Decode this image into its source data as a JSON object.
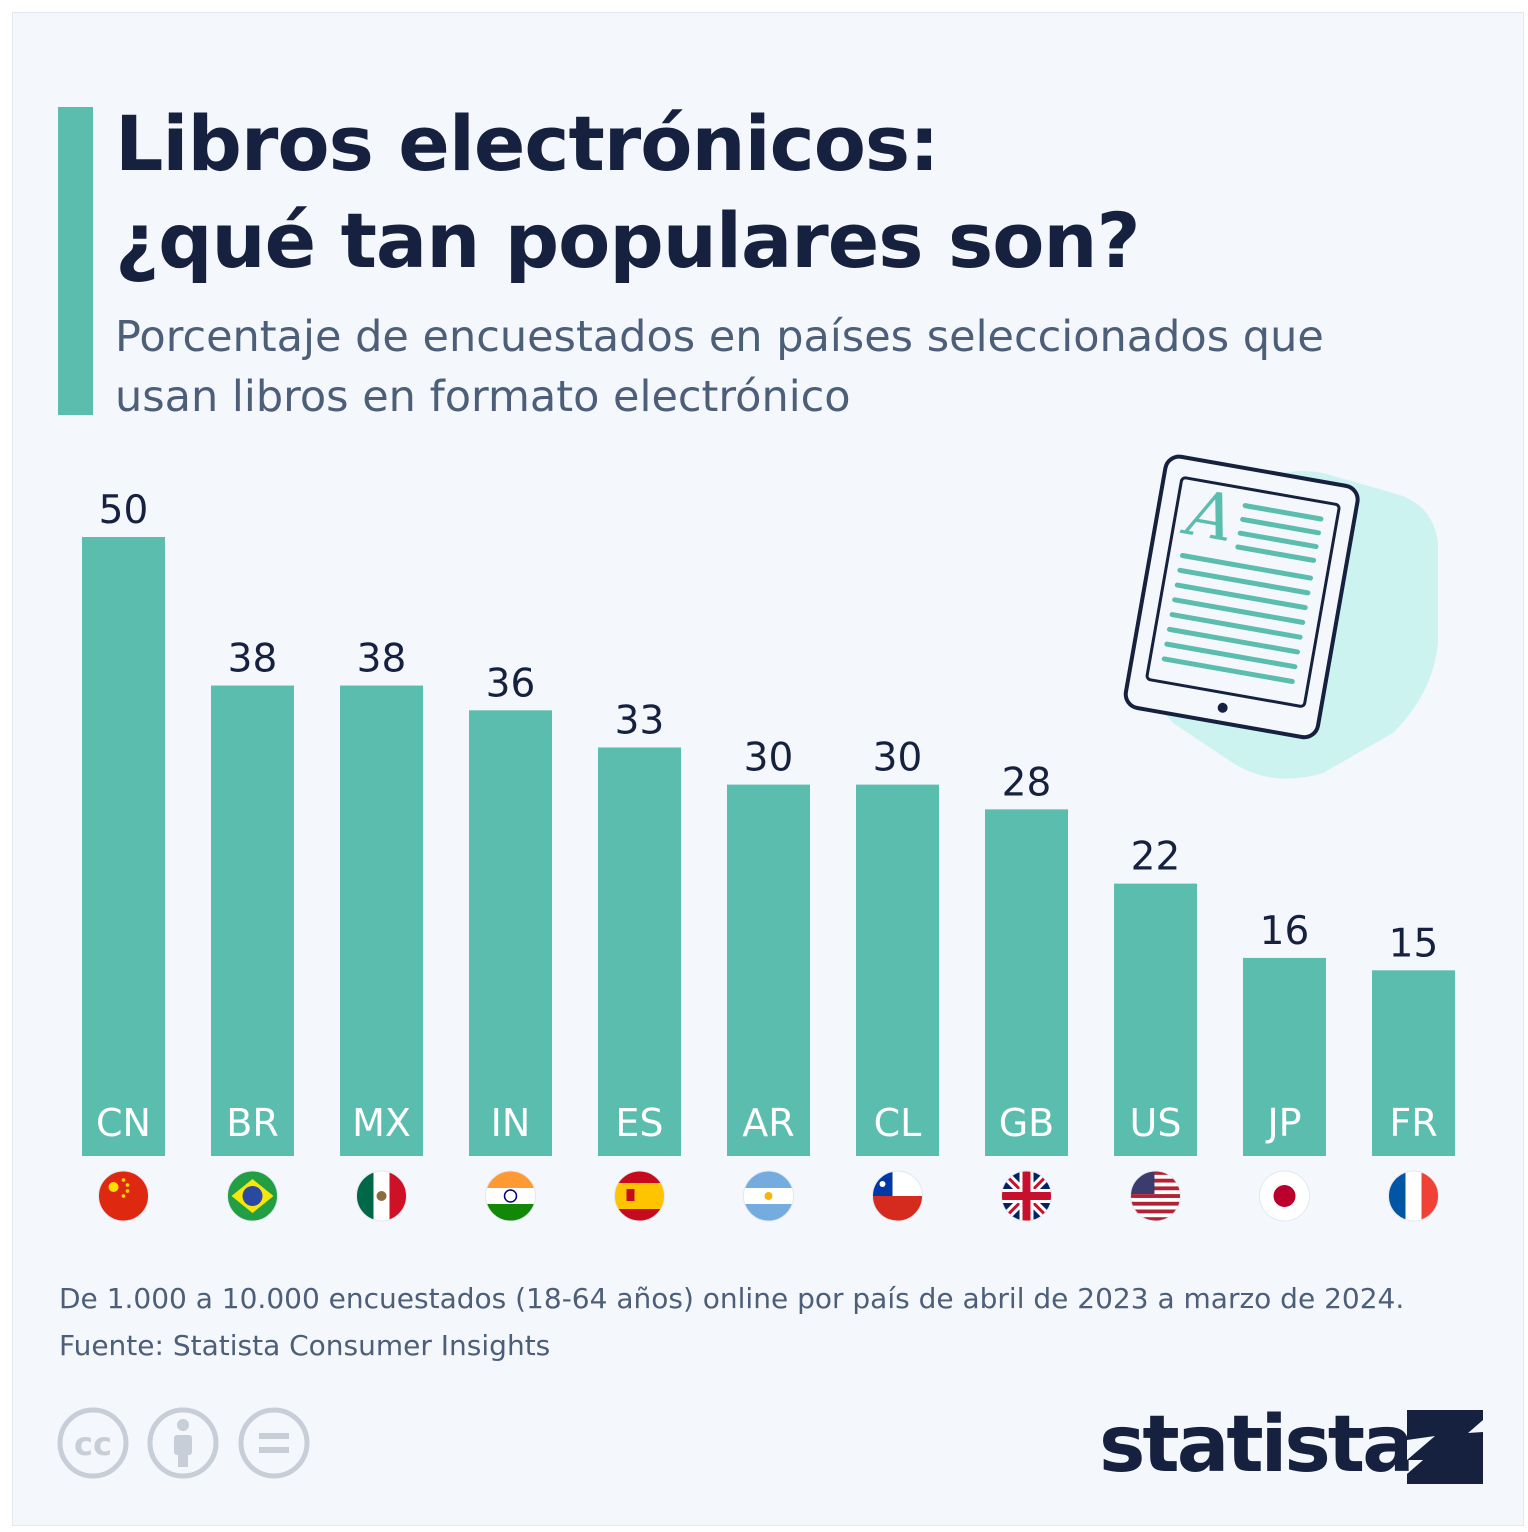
{
  "title_line1": "Libros electrónicos:",
  "title_line2": "¿qué tan populares son?",
  "subtitle_line1": "Porcentaje de encuestados en países seleccionados que",
  "subtitle_line2": "usan libros en formato electrónico",
  "footnote": "De 1.000 a 10.000 encuestados (18-64 años) online por país de abril de 2023 a marzo de 2024.",
  "source": "Fuente: Statista Consumer Insights",
  "logo_text": "statista",
  "license_icons": [
    "cc-icon",
    "attribution-icon",
    "no-derivatives-icon"
  ],
  "illustration_icon": "ebook-reader-icon",
  "illustration_letter": "A",
  "colors": {
    "bar": "#5bbdae",
    "accent": "#5bbdae",
    "title": "#16213f",
    "text": "#4d5e78",
    "background": "#f4f7fb"
  },
  "chart_data": {
    "type": "bar",
    "categories": [
      "CN",
      "BR",
      "MX",
      "IN",
      "ES",
      "AR",
      "CL",
      "GB",
      "US",
      "JP",
      "FR"
    ],
    "values": [
      50,
      38,
      38,
      36,
      33,
      30,
      30,
      28,
      22,
      16,
      15
    ],
    "flags": [
      "china-flag-icon",
      "brazil-flag-icon",
      "mexico-flag-icon",
      "india-flag-icon",
      "spain-flag-icon",
      "argentina-flag-icon",
      "chile-flag-icon",
      "uk-flag-icon",
      "usa-flag-icon",
      "japan-flag-icon",
      "france-flag-icon"
    ],
    "ylim": [
      0,
      50
    ],
    "grid": false,
    "legend": "none"
  }
}
